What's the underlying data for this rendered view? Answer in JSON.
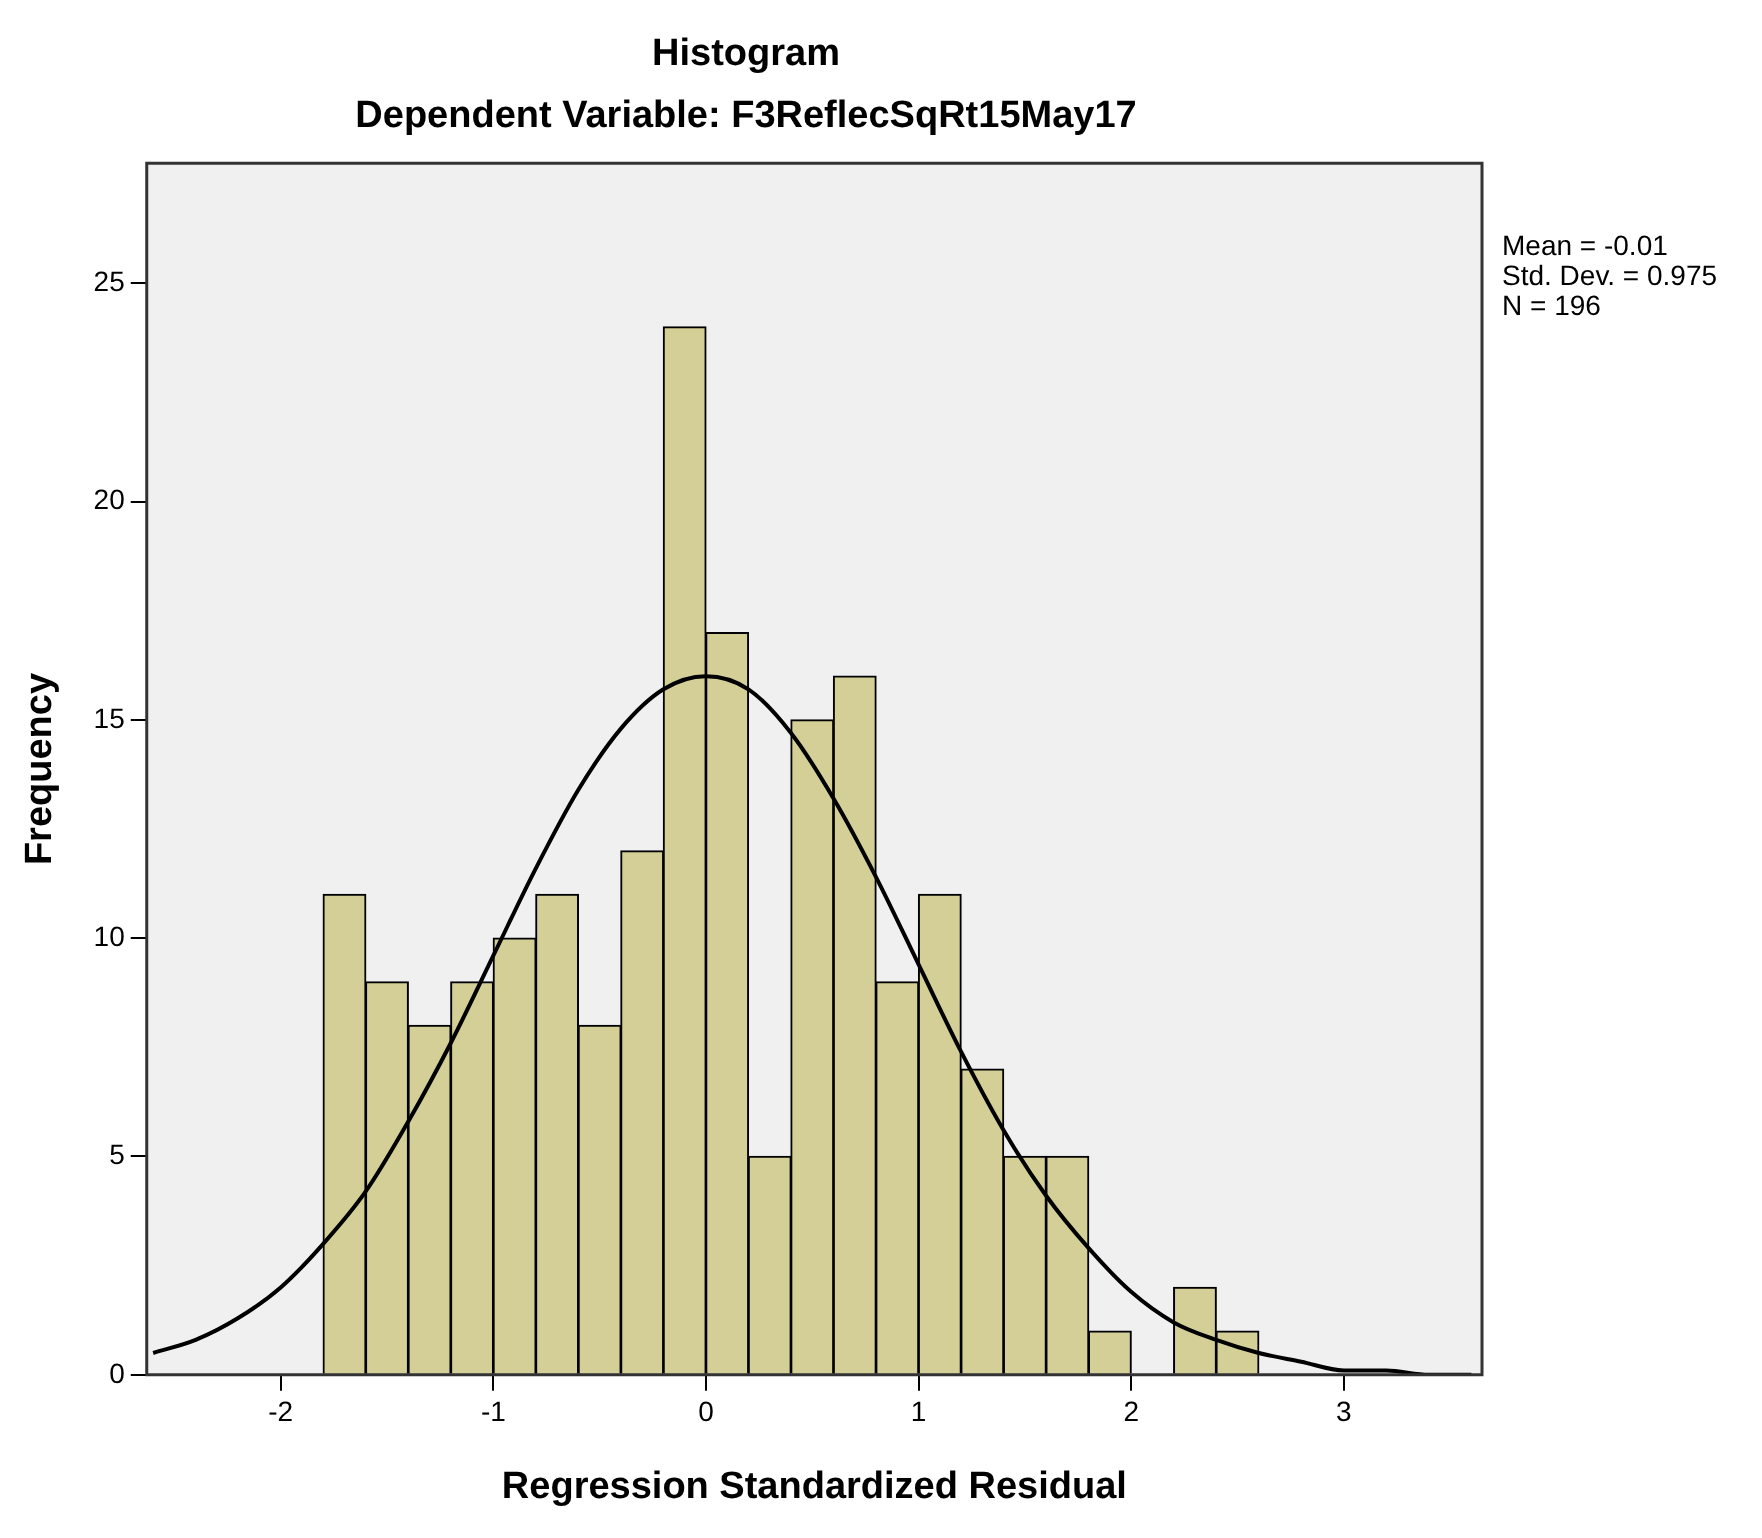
{
  "chart_data": {
    "type": "histogram",
    "title": "Histogram",
    "subtitle": "Dependent Variable: F3ReflecSqRt15May17",
    "xlabel": "Regression Standardized Residual",
    "ylabel": "Frequency",
    "bins": [
      -1.8,
      -1.6,
      -1.4,
      -1.2,
      -1.0,
      -0.8,
      -0.6,
      -0.4,
      -0.2,
      0.0,
      0.2,
      0.4,
      0.6,
      0.8,
      1.0,
      1.2,
      1.4,
      1.6,
      1.8,
      2.0,
      2.2,
      2.4,
      2.6
    ],
    "values": [
      11,
      9,
      8,
      9,
      10,
      11,
      8,
      12,
      24,
      17,
      5,
      15,
      16,
      9,
      11,
      7,
      5,
      5,
      1,
      0,
      2,
      1
    ],
    "color": "#d3cf97",
    "series": [
      {
        "type": "line",
        "color": "#000000",
        "x": [
          -2.6,
          -2.4,
          -2.2,
          -2.0,
          -1.8,
          -1.6,
          -1.4,
          -1.2,
          -1.0,
          -0.8,
          -0.6,
          -0.4,
          -0.2,
          0.0,
          0.2,
          0.4,
          0.6,
          0.8,
          1.0,
          1.2,
          1.4,
          1.6,
          1.8,
          2.0,
          2.2,
          2.4,
          2.6,
          2.8,
          3.0,
          3.2,
          3.4,
          3.6
        ],
        "values": [
          0.5,
          0.8,
          1.3,
          2.0,
          3.0,
          4.2,
          5.8,
          7.6,
          9.6,
          11.6,
          13.4,
          14.8,
          15.7,
          16.0,
          15.7,
          14.7,
          13.2,
          11.4,
          9.4,
          7.4,
          5.6,
          4.1,
          2.9,
          1.9,
          1.2,
          0.8,
          0.5,
          0.3,
          0.1,
          0.1,
          0.0,
          0.0
        ]
      }
    ],
    "xlim": [
      -2.63,
      3.65
    ],
    "xticks": [
      -2,
      -1,
      0,
      1,
      2,
      3
    ],
    "ylim": [
      0,
      27.75
    ],
    "yticks": [
      0,
      5,
      10,
      15,
      20,
      25
    ],
    "annotations": [
      "Mean = -0.01",
      "Std. Dev. = 0.975",
      "N = 196"
    ],
    "grid": false,
    "legend": false,
    "marker": "none"
  }
}
